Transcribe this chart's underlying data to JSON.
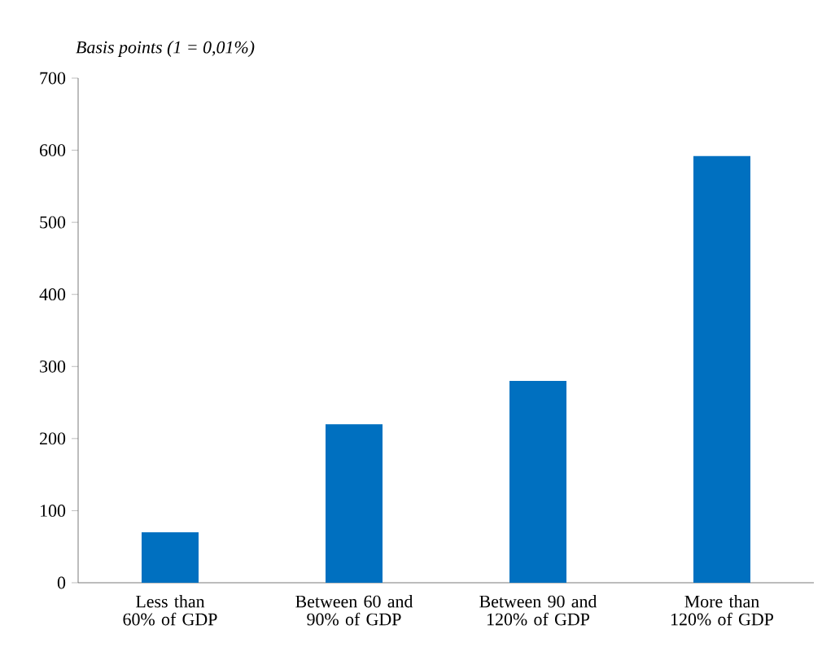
{
  "chart_data": {
    "type": "bar",
    "ylabel": "Basis points (1 = 0,01%)",
    "categories": [
      "Less than 60% of GDP",
      "Between 60 and 90% of GDP",
      "Between 90 and 120% of GDP",
      "More than 120% of GDP"
    ],
    "values": [
      70,
      220,
      280,
      592
    ],
    "color": "#0070c0",
    "ylim": [
      0,
      700
    ],
    "yticks": [
      0,
      100,
      200,
      300,
      400,
      500,
      600,
      700
    ],
    "grid": false
  }
}
